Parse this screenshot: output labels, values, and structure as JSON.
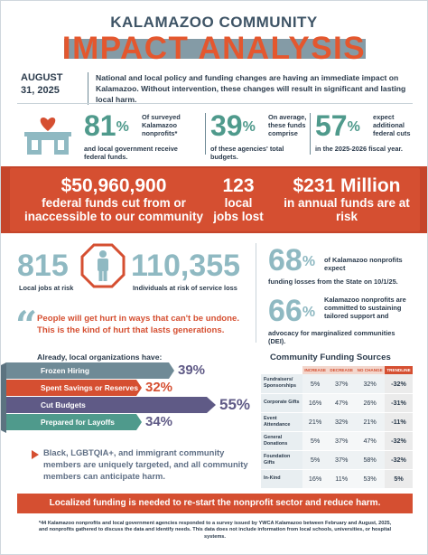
{
  "header": {
    "org": "KALAMAZOO COMMUNITY",
    "title": "IMPACT ANALYSIS",
    "date": "AUGUST 31, 2025",
    "intro": "National and local policy and funding changes are having an immediate impact on Kalamazoo. Without intervention, these changes will result in significant and lasting local harm."
  },
  "stats": [
    {
      "value": "81",
      "unit": "%",
      "side": "Of surveyed Kalamazoo nonprofits*",
      "below": "and local government receive federal funds."
    },
    {
      "value": "39",
      "unit": "%",
      "side": "On average, these funds comprise",
      "below": "of these agencies' total budgets."
    },
    {
      "value": "57",
      "unit": "%",
      "side": "expect additional federal cuts",
      "below": "in the 2025-2026 fiscal year."
    }
  ],
  "banner": [
    {
      "value": "$50,960,900",
      "label": "federal funds cut from or inaccessible to our community"
    },
    {
      "value": "123",
      "label": "local jobs lost"
    },
    {
      "value": "$231 Million",
      "label": "in annual funds are at risk"
    }
  ],
  "risk": {
    "jobs_value": "815",
    "jobs_label": "Local jobs at risk",
    "individuals_value": "110,355",
    "individuals_label": "Individuals at risk of service loss"
  },
  "right_stats": [
    {
      "value": "68",
      "unit": "%",
      "side": "of Kalamazoo nonprofits expect",
      "below": "funding losses from the State on 10/1/25."
    },
    {
      "value": "66",
      "unit": "%",
      "side": "Kalamazoo nonprofits are committed to sustaining tailored support and",
      "below": "advocacy for marginalized communities (DEI)."
    }
  ],
  "quote": "People will get hurt in ways that can't be undone. This is the kind of hurt that lasts generations.",
  "already": {
    "heading": "Already, local organizations have:",
    "items": [
      {
        "label": "Frozen Hiring",
        "pct": "39%",
        "color": "#6f8a96"
      },
      {
        "label": "Spent Savings or Reserves",
        "pct": "32%",
        "color": "#d54f31"
      },
      {
        "label": "Cut Budgets",
        "pct": "55%",
        "color": "#5f5a86"
      },
      {
        "label": "Prepared for Layoffs",
        "pct": "34%",
        "color": "#4f9a8c"
      }
    ]
  },
  "bullet": "Black, LGBTQIA+, and immigrant community members are uniquely targeted, and all community members can anticipate harm.",
  "table": {
    "title": "Community Funding Sources",
    "headers": [
      "INCREASE",
      "DECREASE",
      "NO CHANGE",
      "TRENDLINE"
    ],
    "rows": [
      {
        "source": "Fundraisers/ Sponsorships",
        "increase": "5%",
        "decrease": "37%",
        "no_change": "32%",
        "trend": "-32%"
      },
      {
        "source": "Corporate Gifts",
        "increase": "16%",
        "decrease": "47%",
        "no_change": "26%",
        "trend": "-31%"
      },
      {
        "source": "Event Attendance",
        "increase": "21%",
        "decrease": "32%",
        "no_change": "21%",
        "trend": "-11%"
      },
      {
        "source": "General Donations",
        "increase": "5%",
        "decrease": "37%",
        "no_change": "47%",
        "trend": "-32%"
      },
      {
        "source": "Foundation Gifts",
        "increase": "5%",
        "decrease": "37%",
        "no_change": "58%",
        "trend": "-32%"
      },
      {
        "source": "In-Kind",
        "increase": "16%",
        "decrease": "11%",
        "no_change": "53%",
        "trend": "5%"
      }
    ]
  },
  "footer": {
    "bar": "Localized funding is needed to re-start the nonprofit sector and reduce harm.",
    "note": "*44 Kalamazoo nonprofits and local government agencies responded to a survey issued by YWCA Kalamazoo between February and August, 2025, and nonprofits gathered to discuss the data and identify needs. This data does not include information from local schools, universities, or hospital systems."
  },
  "colors": {
    "accent_orange": "#d54f31",
    "teal": "#4f9a8c",
    "slate": "#6f8a96",
    "light_teal": "#8fb9c2",
    "purple": "#5f5a86"
  },
  "icons": [
    "house-heart-icon",
    "person-stop-icon",
    "quote-icon",
    "bullet-arrow-icon"
  ]
}
